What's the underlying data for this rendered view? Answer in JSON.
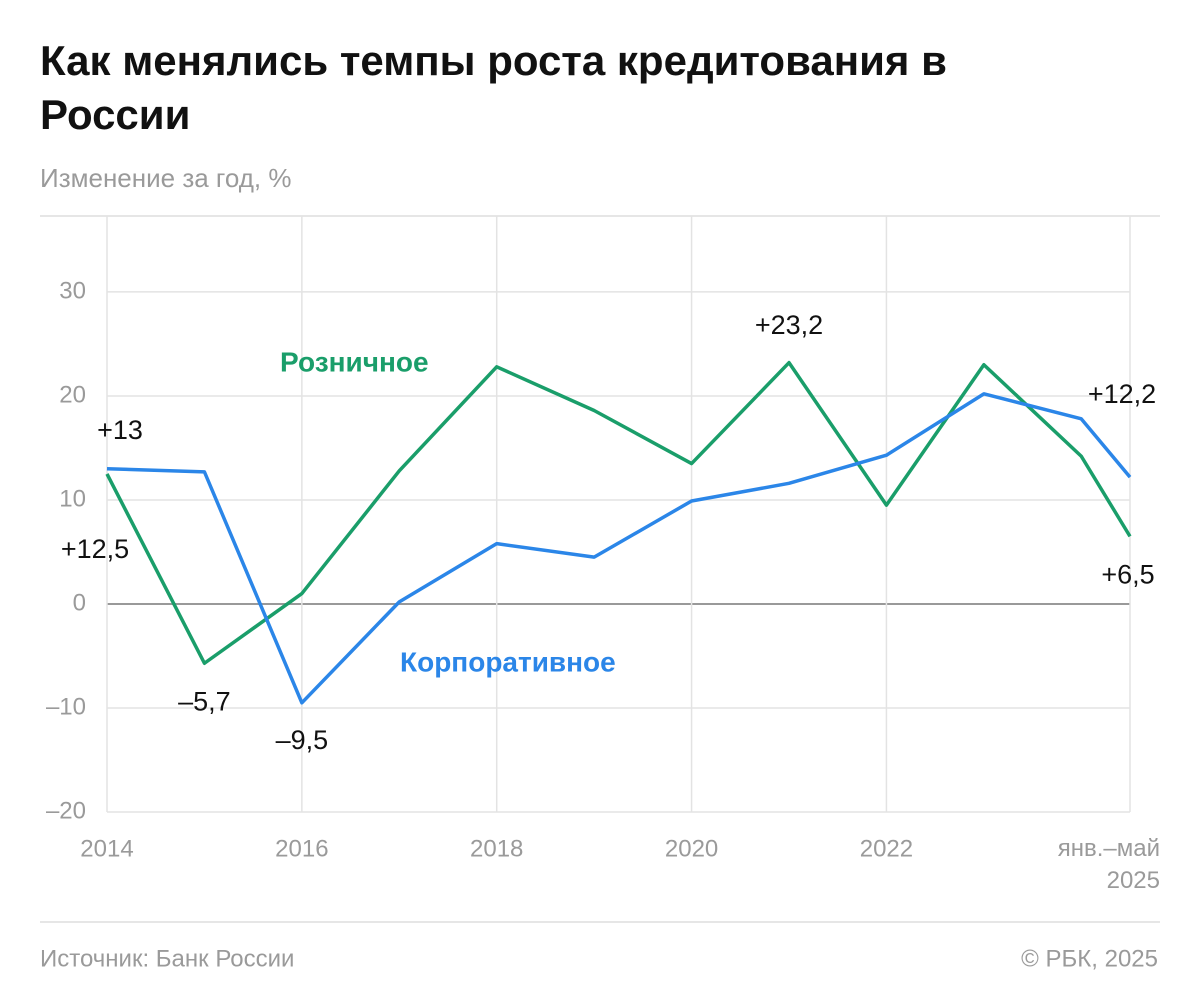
{
  "chart_data": {
    "type": "line",
    "title": "Как менялись темпы роста кредитования в России",
    "subtitle": "Изменение за год, %",
    "source": "Источник: Банк России",
    "credit": "© РБК, 2025",
    "x": [
      2014,
      2015,
      2016,
      2017,
      2018,
      2019,
      2020,
      2021,
      2022,
      2023,
      2024,
      2024.5
    ],
    "xlim": [
      2014,
      2024.5
    ],
    "xticks": [
      2014,
      2016,
      2018,
      2020,
      2022,
      {
        "value": 2024.5,
        "label": "янв.–май 2025"
      }
    ],
    "ylim": [
      -20,
      37.3
    ],
    "yticks": [
      {
        "value": -20,
        "label": "–20"
      },
      {
        "value": -10,
        "label": "–10"
      },
      0,
      10,
      20,
      30
    ],
    "grid": true,
    "series": [
      {
        "name": "Розничное",
        "color": "#1a9e6a",
        "values": [
          12.5,
          -5.7,
          1.0,
          12.8,
          22.8,
          18.6,
          13.5,
          23.2,
          9.5,
          23.0,
          14.2,
          6.5
        ],
        "value_labels": [
          "+12,5",
          "–5,7",
          null,
          null,
          null,
          null,
          null,
          "+23,2",
          null,
          null,
          null,
          "+6,5"
        ]
      },
      {
        "name": "Корпоративное",
        "color": "#2b86e8",
        "values": [
          13,
          12.7,
          -9.5,
          0.2,
          5.8,
          4.5,
          9.9,
          11.6,
          14.3,
          20.2,
          17.8,
          12.2
        ],
        "value_labels": [
          "+13",
          null,
          "–9,5",
          null,
          null,
          null,
          null,
          null,
          null,
          null,
          null,
          "+12,2"
        ]
      }
    ]
  }
}
